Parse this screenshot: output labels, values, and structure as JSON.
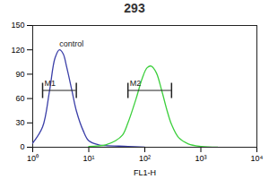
{
  "chart_data": {
    "type": "line",
    "title": "293",
    "xlabel": "FL1-H",
    "log": "x",
    "grid": false,
    "xlim": [
      1,
      10000
    ],
    "xticks": [
      {
        "value": 1,
        "label": "10⁰"
      },
      {
        "value": 10,
        "label": "10¹"
      },
      {
        "value": 100,
        "label": "10²"
      },
      {
        "value": 1000,
        "label": "10³"
      },
      {
        "value": 10000,
        "label": "10⁴"
      }
    ],
    "ylim": [
      0,
      150
    ],
    "yticks": [
      0,
      30,
      60,
      90,
      120,
      150
    ],
    "series": [
      {
        "name": "control",
        "color": "#3b3fa8",
        "x": [
          1,
          1.5,
          2,
          2.5,
          3,
          3.5,
          4,
          5,
          6,
          8,
          10,
          15,
          20,
          50,
          100
        ],
        "values": [
          5,
          25,
          70,
          110,
          120,
          115,
          100,
          70,
          45,
          20,
          8,
          3,
          2,
          1,
          0
        ]
      },
      {
        "color": "#3ccf3c",
        "x": [
          10,
          20,
          30,
          40,
          50,
          70,
          90,
          110,
          130,
          160,
          200,
          250,
          300,
          400,
          600,
          1000,
          2000
        ],
        "values": [
          1,
          3,
          8,
          15,
          30,
          60,
          85,
          98,
          100,
          92,
          70,
          45,
          28,
          12,
          4,
          1,
          0
        ]
      }
    ],
    "gates": [
      {
        "label": "M1",
        "x": [
          1.5,
          6
        ],
        "y": 70
      },
      {
        "label": "M2",
        "x": [
          50,
          300
        ],
        "y": 70
      }
    ]
  }
}
